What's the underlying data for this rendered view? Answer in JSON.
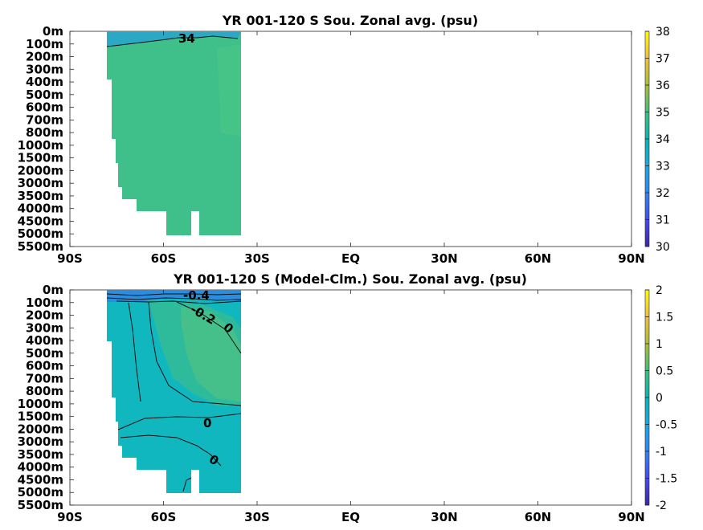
{
  "chart_data": [
    {
      "type": "heatmap",
      "title": "YR 001-120 S Sou. Zonal avg. (psu)",
      "x_tick_labels": [
        "90S",
        "60S",
        "30S",
        "EQ",
        "30N",
        "60N",
        "90N"
      ],
      "x_ticks": [
        -90,
        -60,
        -30,
        0,
        30,
        60,
        90
      ],
      "xlim": [
        -90,
        90
      ],
      "y_tick_labels": [
        "0m",
        "100m",
        "200m",
        "300m",
        "400m",
        "500m",
        "600m",
        "700m",
        "800m",
        "1000m",
        "1500m",
        "2000m",
        "3000m",
        "3500m",
        "4000m",
        "4500m",
        "5000m",
        "5500m"
      ],
      "colorbar": {
        "min": 30,
        "max": 38,
        "ticks": [
          30,
          31,
          32,
          33,
          34,
          35,
          36,
          37,
          38
        ]
      },
      "data_extent_lat": [
        -78,
        -35
      ],
      "values_note_levels": [
        34
      ],
      "contour_labels": [
        "34"
      ],
      "grid": false
    },
    {
      "type": "heatmap",
      "title": "YR 001-120 S (Model-Clm.) Sou. Zonal avg. (psu)",
      "x_tick_labels": [
        "90S",
        "60S",
        "30S",
        "EQ",
        "30N",
        "60N",
        "90N"
      ],
      "x_ticks": [
        -90,
        -60,
        -30,
        0,
        30,
        60,
        90
      ],
      "xlim": [
        -90,
        90
      ],
      "y_tick_labels": [
        "0m",
        "100m",
        "200m",
        "300m",
        "400m",
        "500m",
        "600m",
        "700m",
        "800m",
        "1000m",
        "1500m",
        "2000m",
        "3000m",
        "3500m",
        "4000m",
        "4500m",
        "5000m",
        "5500m"
      ],
      "colorbar": {
        "min": -2,
        "max": 2,
        "ticks": [
          2,
          1.5,
          1,
          0.5,
          0,
          -0.5,
          -1,
          -1.5,
          -2
        ]
      },
      "data_extent_lat": [
        -78,
        -35
      ],
      "contour_labels": [
        "-0.4",
        "-0.2",
        "0",
        "0",
        "0"
      ],
      "grid": false
    }
  ],
  "colors": {
    "low": "#3e26a8",
    "mid": "#2cb7a9",
    "high": "#f9fb0e"
  }
}
